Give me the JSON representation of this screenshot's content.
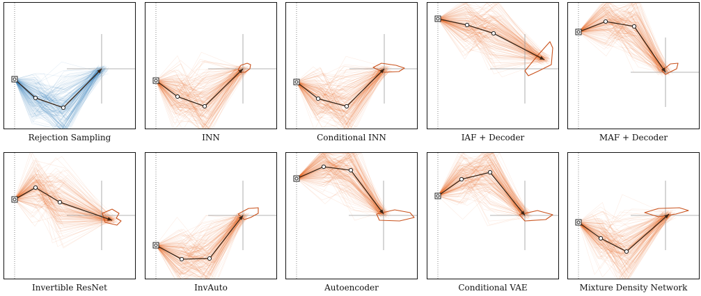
{
  "colors": {
    "blue": "#2f7fb8",
    "orange": "#e8681f",
    "dark": "#3a2415",
    "guide": "#9a9a9a"
  },
  "panels": [
    {
      "label": "Rejection Sampling",
      "color": "blue",
      "arm": [
        [
          15,
          110
        ],
        [
          45,
          137
        ],
        [
          85,
          151
        ],
        [
          140,
          95
        ]
      ],
      "target": [
        140,
        95
      ],
      "blob": []
    },
    {
      "label": "INN",
      "color": "orange",
      "arm": [
        [
          15,
          112
        ],
        [
          46,
          135
        ],
        [
          85,
          149
        ],
        [
          140,
          95
        ]
      ],
      "target": [
        140,
        95
      ],
      "blob": [
        [
          133,
          96
        ],
        [
          137,
          90
        ],
        [
          146,
          87
        ],
        [
          151,
          89
        ],
        [
          150,
          95
        ],
        [
          143,
          100
        ],
        [
          136,
          100
        ]
      ]
    },
    {
      "label": "Conditional INN",
      "color": "orange",
      "arm": [
        [
          15,
          114
        ],
        [
          46,
          138
        ],
        [
          87,
          149
        ],
        [
          141,
          95
        ]
      ],
      "target": [
        141,
        95
      ],
      "blob": [
        [
          125,
          93
        ],
        [
          137,
          87
        ],
        [
          158,
          90
        ],
        [
          170,
          94
        ],
        [
          162,
          99
        ],
        [
          140,
          100
        ]
      ]
    },
    {
      "label": "IAF + Decoder",
      "color": "orange",
      "arm": [
        [
          15,
          23
        ],
        [
          57,
          32
        ],
        [
          95,
          44
        ],
        [
          168,
          82
        ]
      ],
      "target": [
        140,
        95
      ],
      "blob": [
        [
          140,
          98
        ],
        [
          160,
          74
        ],
        [
          176,
          56
        ],
        [
          180,
          65
        ],
        [
          178,
          89
        ],
        [
          160,
          98
        ],
        [
          145,
          105
        ]
      ]
    },
    {
      "label": "MAF + Decoder",
      "color": "orange",
      "arm": [
        [
          15,
          42
        ],
        [
          54,
          27
        ],
        [
          95,
          34
        ],
        [
          140,
          100
        ]
      ],
      "target": [
        140,
        100
      ],
      "blob": [
        [
          135,
          98
        ],
        [
          147,
          88
        ],
        [
          158,
          87
        ],
        [
          156,
          95
        ],
        [
          140,
          103
        ]
      ]
    },
    {
      "label": "Invertible ResNet",
      "color": "orange",
      "arm": [
        [
          15,
          67
        ],
        [
          45,
          50
        ],
        [
          80,
          71
        ],
        [
          155,
          97
        ]
      ],
      "target": [
        140,
        90
      ],
      "blob": [
        [
          141,
          87
        ],
        [
          155,
          81
        ],
        [
          165,
          87
        ],
        [
          161,
          94
        ],
        [
          168,
          98
        ],
        [
          162,
          104
        ],
        [
          145,
          100
        ]
      ]
    },
    {
      "label": "InvAuto",
      "color": "orange",
      "arm": [
        [
          15,
          133
        ],
        [
          52,
          153
        ],
        [
          92,
          152
        ],
        [
          140,
          90
        ]
      ],
      "target": [
        140,
        90
      ],
      "blob": [
        [
          133,
          88
        ],
        [
          148,
          80
        ],
        [
          162,
          79
        ],
        [
          162,
          87
        ],
        [
          151,
          93
        ],
        [
          142,
          96
        ]
      ]
    },
    {
      "label": "Autoencoder",
      "color": "orange",
      "arm": [
        [
          15,
          37
        ],
        [
          54,
          20
        ],
        [
          93,
          25
        ],
        [
          140,
          88
        ]
      ],
      "target": [
        140,
        90
      ],
      "blob": [
        [
          130,
          88
        ],
        [
          156,
          82
        ],
        [
          178,
          86
        ],
        [
          184,
          93
        ],
        [
          163,
          98
        ],
        [
          134,
          97
        ]
      ]
    },
    {
      "label": "Conditional VAE",
      "color": "orange",
      "arm": [
        [
          15,
          62
        ],
        [
          49,
          38
        ],
        [
          90,
          28
        ],
        [
          140,
          90
        ]
      ],
      "target": [
        140,
        90
      ],
      "blob": [
        [
          132,
          89
        ],
        [
          158,
          83
        ],
        [
          180,
          89
        ],
        [
          170,
          96
        ],
        [
          140,
          98
        ]
      ]
    },
    {
      "label": "Mixture Density Network",
      "color": "orange",
      "arm": [
        [
          15,
          100
        ],
        [
          47,
          123
        ],
        [
          84,
          142
        ],
        [
          145,
          88
        ]
      ],
      "target": [
        140,
        90
      ],
      "blob": [
        [
          110,
          86
        ],
        [
          130,
          80
        ],
        [
          160,
          79
        ],
        [
          173,
          83
        ],
        [
          155,
          88
        ],
        [
          130,
          92
        ]
      ]
    }
  ]
}
